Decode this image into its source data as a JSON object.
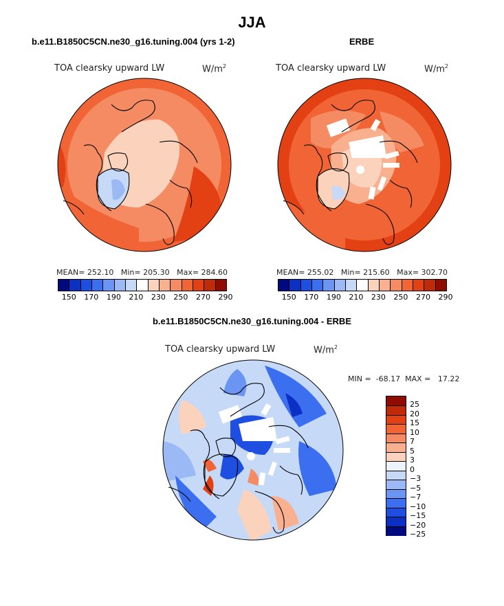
{
  "title": "JJA",
  "panels": {
    "model": {
      "case": "b.e11.B1850C5CN.ne30_g16.tuning.004 (yrs 1-2)",
      "variable": "TOA clearsky upward LW",
      "units": "W/m",
      "units_sup": "2",
      "stats": "MEAN= 252.10   Min= 205.30   Max= 284.60"
    },
    "obs": {
      "case": "ERBE",
      "variable": "TOA clearsky upward LW",
      "units": "W/m",
      "units_sup": "2",
      "stats": "MEAN= 255.02   Min= 215.60   Max= 302.70"
    },
    "diff": {
      "case": "b.e11.B1850C5CN.ne30_g16.tuning.004 - ERBE",
      "variable": "TOA clearsky upward LW",
      "units": "W/m",
      "units_sup": "2",
      "stats": "MIN =  -68.17  MAX =   17.22"
    }
  },
  "colorbar_abs": {
    "colors": [
      "#000a80",
      "#0c2fc4",
      "#1f4fe0",
      "#3c6ef0",
      "#6b95f3",
      "#9ab9f5",
      "#c6d9f7",
      "#ffffff",
      "#fbd3bd",
      "#f8b08e",
      "#f58b62",
      "#f06436",
      "#e34013",
      "#c02a08",
      "#900c00"
    ],
    "tick_labels": [
      "150",
      "170",
      "190",
      "210",
      "230",
      "250",
      "270",
      "290"
    ]
  },
  "colorbar_diff": {
    "colors": [
      "#000a80",
      "#0c2fc4",
      "#1f4fe0",
      "#3c6ef0",
      "#6b95f3",
      "#9ab9f5",
      "#c6d9f7",
      "#eef2fb",
      "#fbd3bd",
      "#f8b08e",
      "#f58b62",
      "#f06436",
      "#e34013",
      "#c02a08",
      "#900c00"
    ],
    "tick_labels": [
      "25",
      "20",
      "15",
      "10",
      "7",
      "5",
      "3",
      "0",
      "−3",
      "−5",
      "−7",
      "−10",
      "−15",
      "−20",
      "−25"
    ]
  }
}
